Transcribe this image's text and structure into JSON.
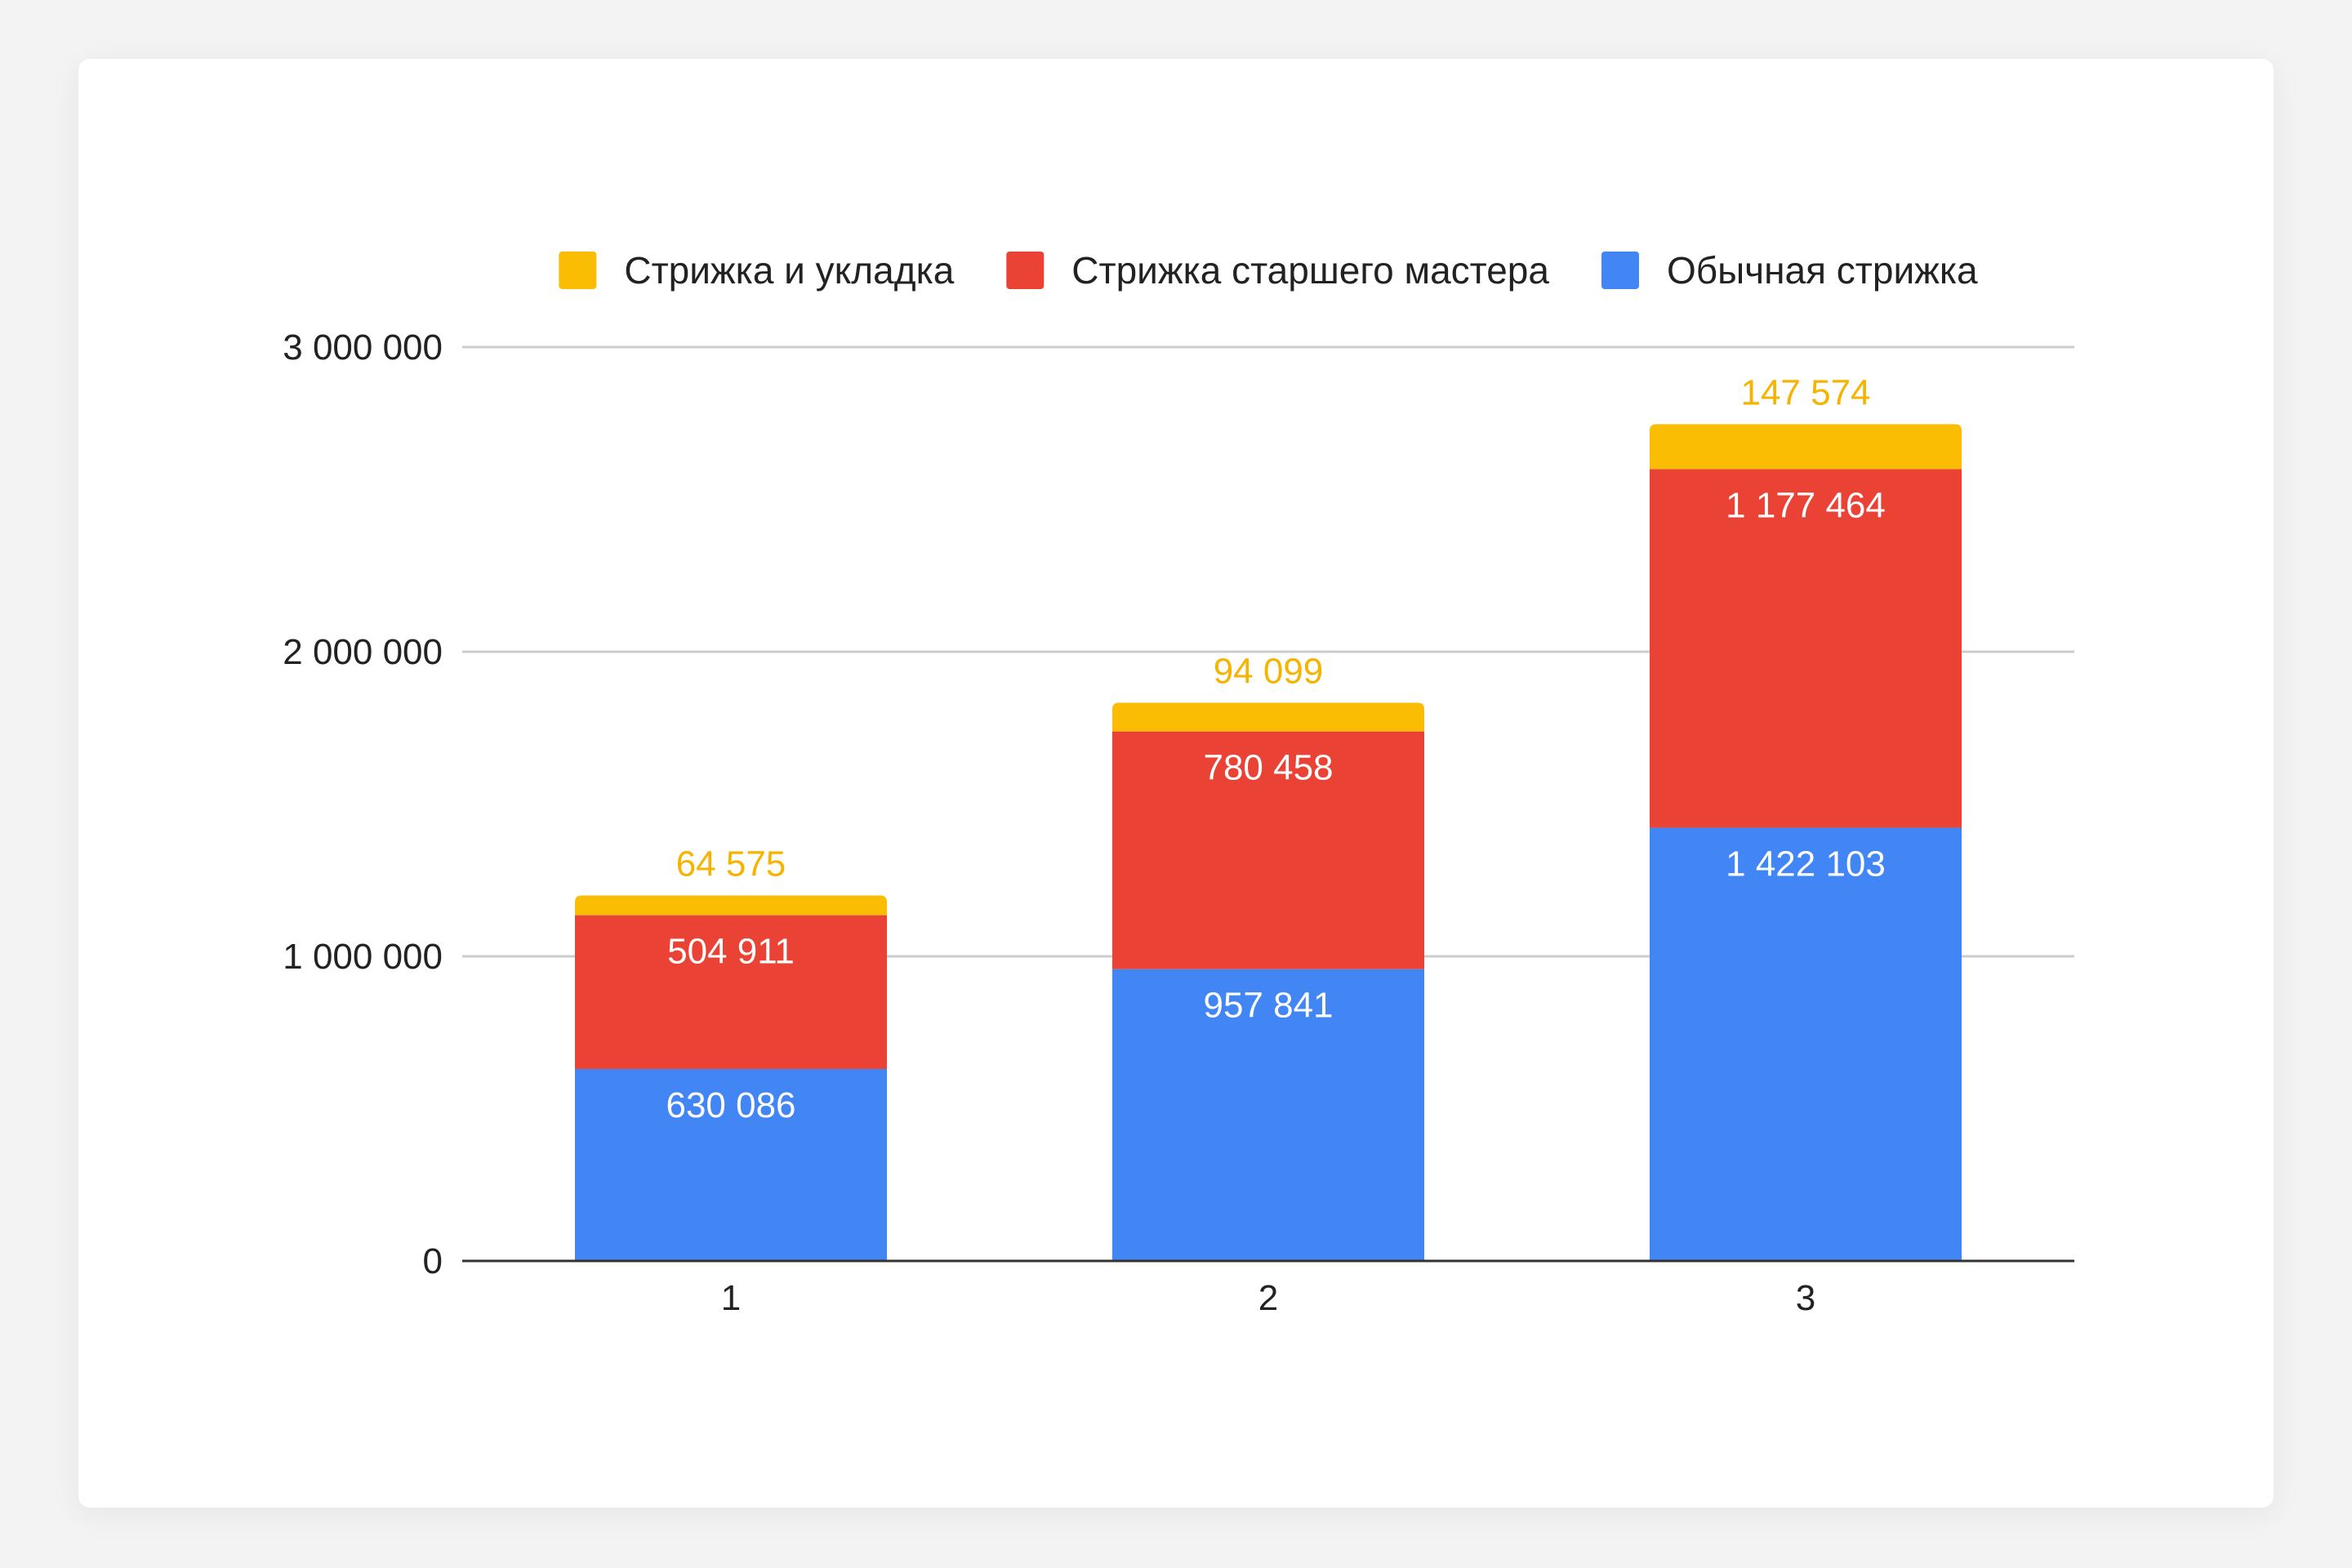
{
  "chart_data": {
    "type": "bar",
    "stacked": true,
    "categories": [
      "1",
      "2",
      "3"
    ],
    "series": [
      {
        "name": "Обычная стрижка",
        "values": [
          630086,
          957841,
          1422103
        ],
        "color": "#4285F4",
        "label_color": "#ffffff",
        "labels": [
          "630 086",
          "957 841",
          "1 422 103"
        ]
      },
      {
        "name": "Стрижка старшего мастера",
        "values": [
          504911,
          780458,
          1177464
        ],
        "color": "#EA4335",
        "label_color": "#ffffff",
        "labels": [
          "504 911",
          "780 458",
          "1 177 464"
        ]
      },
      {
        "name": "Стрижка и укладка",
        "values": [
          64575,
          94099,
          147574
        ],
        "color": "#FBBC04",
        "label_color": "#F6B400",
        "labels": [
          "64 575",
          "94 099",
          "147 574"
        ]
      }
    ],
    "legend_order": [
      "Стрижка и укладка",
      "Стрижка старшего мастера",
      "Обычная стрижка"
    ],
    "legend_position": "top",
    "ylim": [
      0,
      3000000
    ],
    "yticks": [
      0,
      1000000,
      2000000,
      3000000
    ],
    "ytick_labels": [
      "0",
      "1 000 000",
      "2 000 000",
      "3 000 000"
    ],
    "grid": true,
    "title": "",
    "xlabel": "",
    "ylabel": ""
  }
}
